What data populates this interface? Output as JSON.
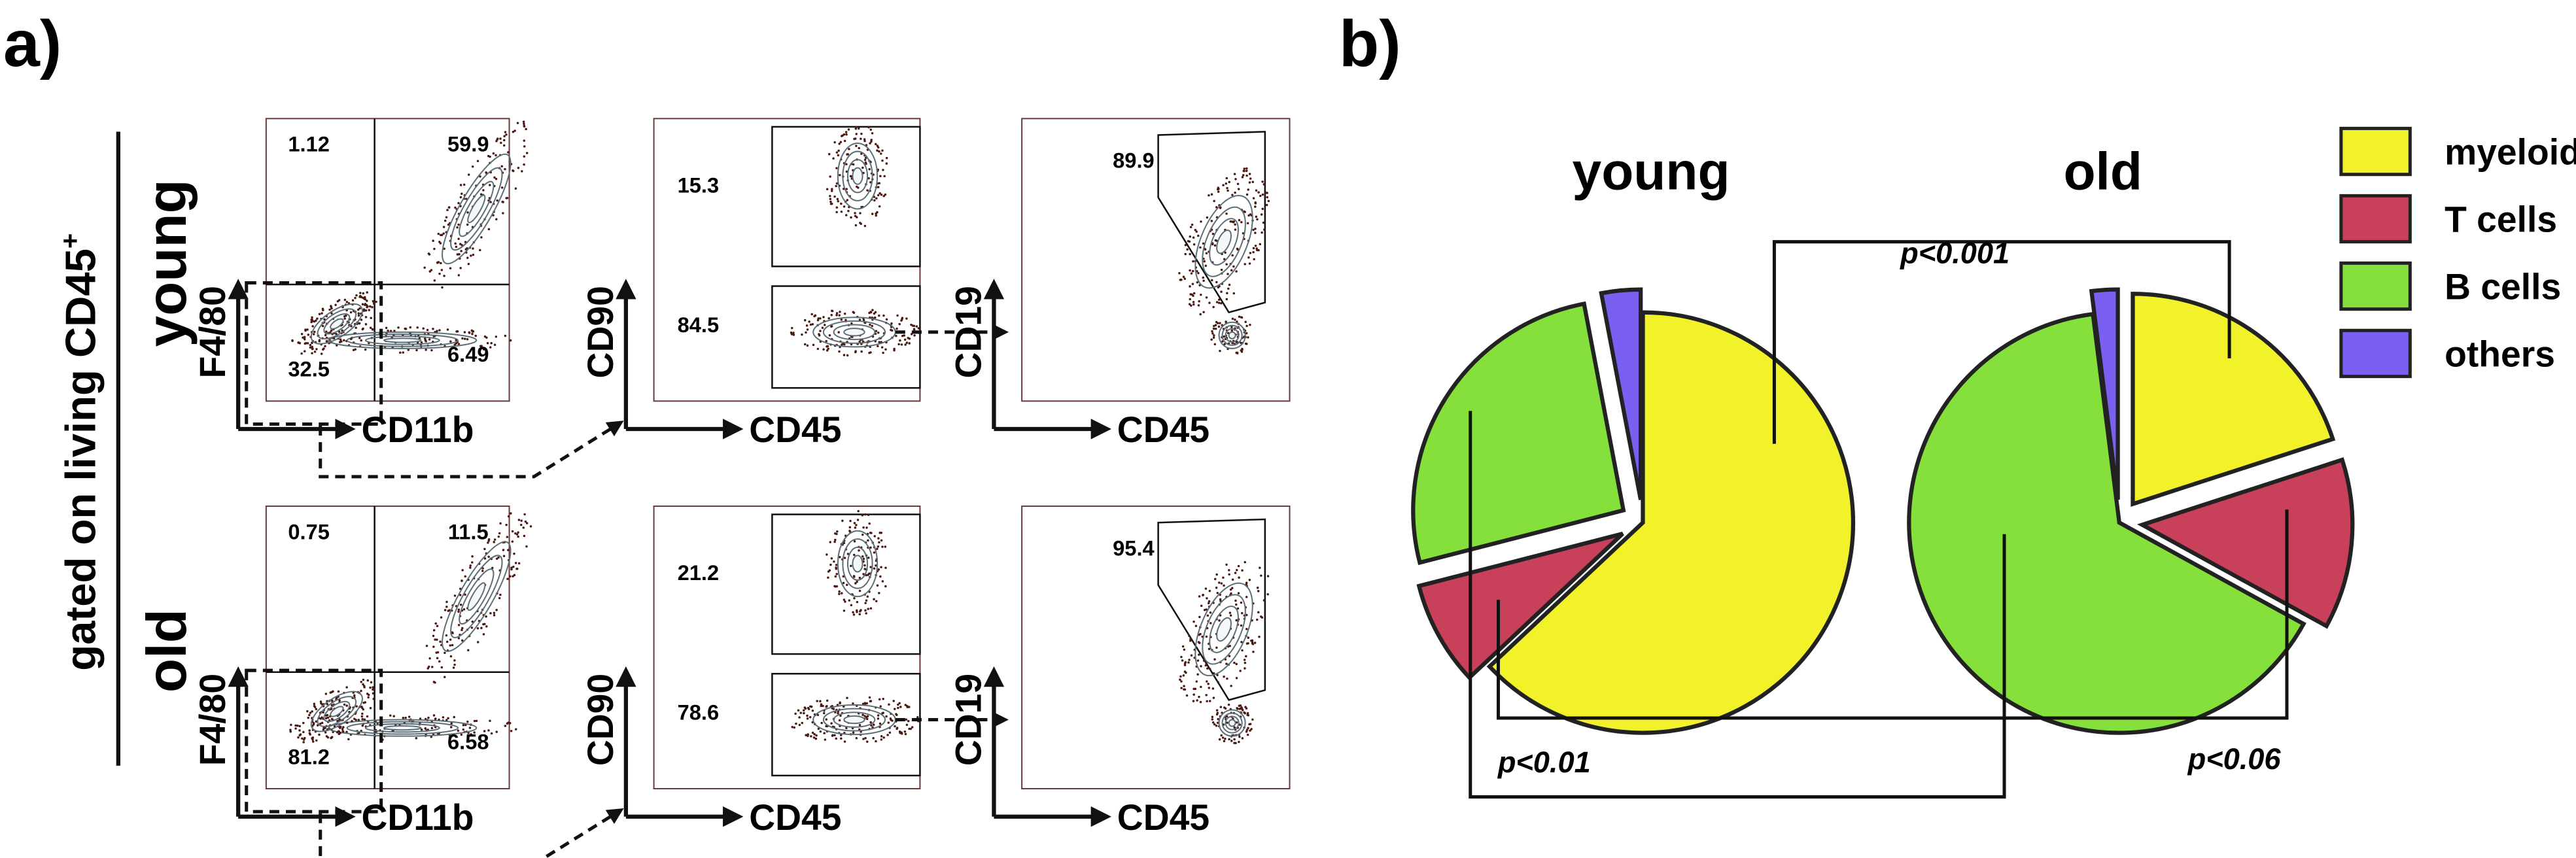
{
  "panel_a": {
    "label": "a)",
    "side_label": "gated on living CD45",
    "side_label_sup": "+",
    "rows": [
      {
        "label": "young",
        "plots": [
          {
            "x": "CD11b",
            "y": "F4/80",
            "gates": [
              "1.12",
              "59.9",
              "32.5",
              "6.49"
            ]
          },
          {
            "x": "CD45",
            "y": "CD90",
            "gates": [
              "15.3",
              "84.5"
            ]
          },
          {
            "x": "CD45",
            "y": "CD19",
            "gates": [
              "89.9"
            ]
          }
        ]
      },
      {
        "label": "old",
        "plots": [
          {
            "x": "CD11b",
            "y": "F4/80",
            "gates": [
              "0.75",
              "11.5",
              "81.2",
              "6.58"
            ]
          },
          {
            "x": "CD45",
            "y": "CD90",
            "gates": [
              "21.2",
              "78.6"
            ]
          },
          {
            "x": "CD45",
            "y": "CD19",
            "gates": [
              "95.4"
            ]
          }
        ]
      }
    ]
  },
  "panel_b": {
    "label": "b)",
    "p_values": [
      "p<0.001",
      "p<0.01",
      "p<0.06"
    ]
  },
  "chart_data": [
    {
      "type": "pie",
      "title": "young",
      "categories": [
        "myeloid",
        "T cells",
        "B cells",
        "others"
      ],
      "colors": [
        "#f2f22a",
        "#c8405a",
        "#86e03c",
        "#7b5ff0"
      ],
      "values": [
        63,
        8,
        26,
        3
      ]
    },
    {
      "type": "pie",
      "title": "old",
      "categories": [
        "myeloid",
        "T cells",
        "B cells",
        "others"
      ],
      "colors": [
        "#f2f22a",
        "#c8405a",
        "#86e03c",
        "#7b5ff0"
      ],
      "values": [
        20,
        13,
        65,
        2
      ]
    }
  ]
}
